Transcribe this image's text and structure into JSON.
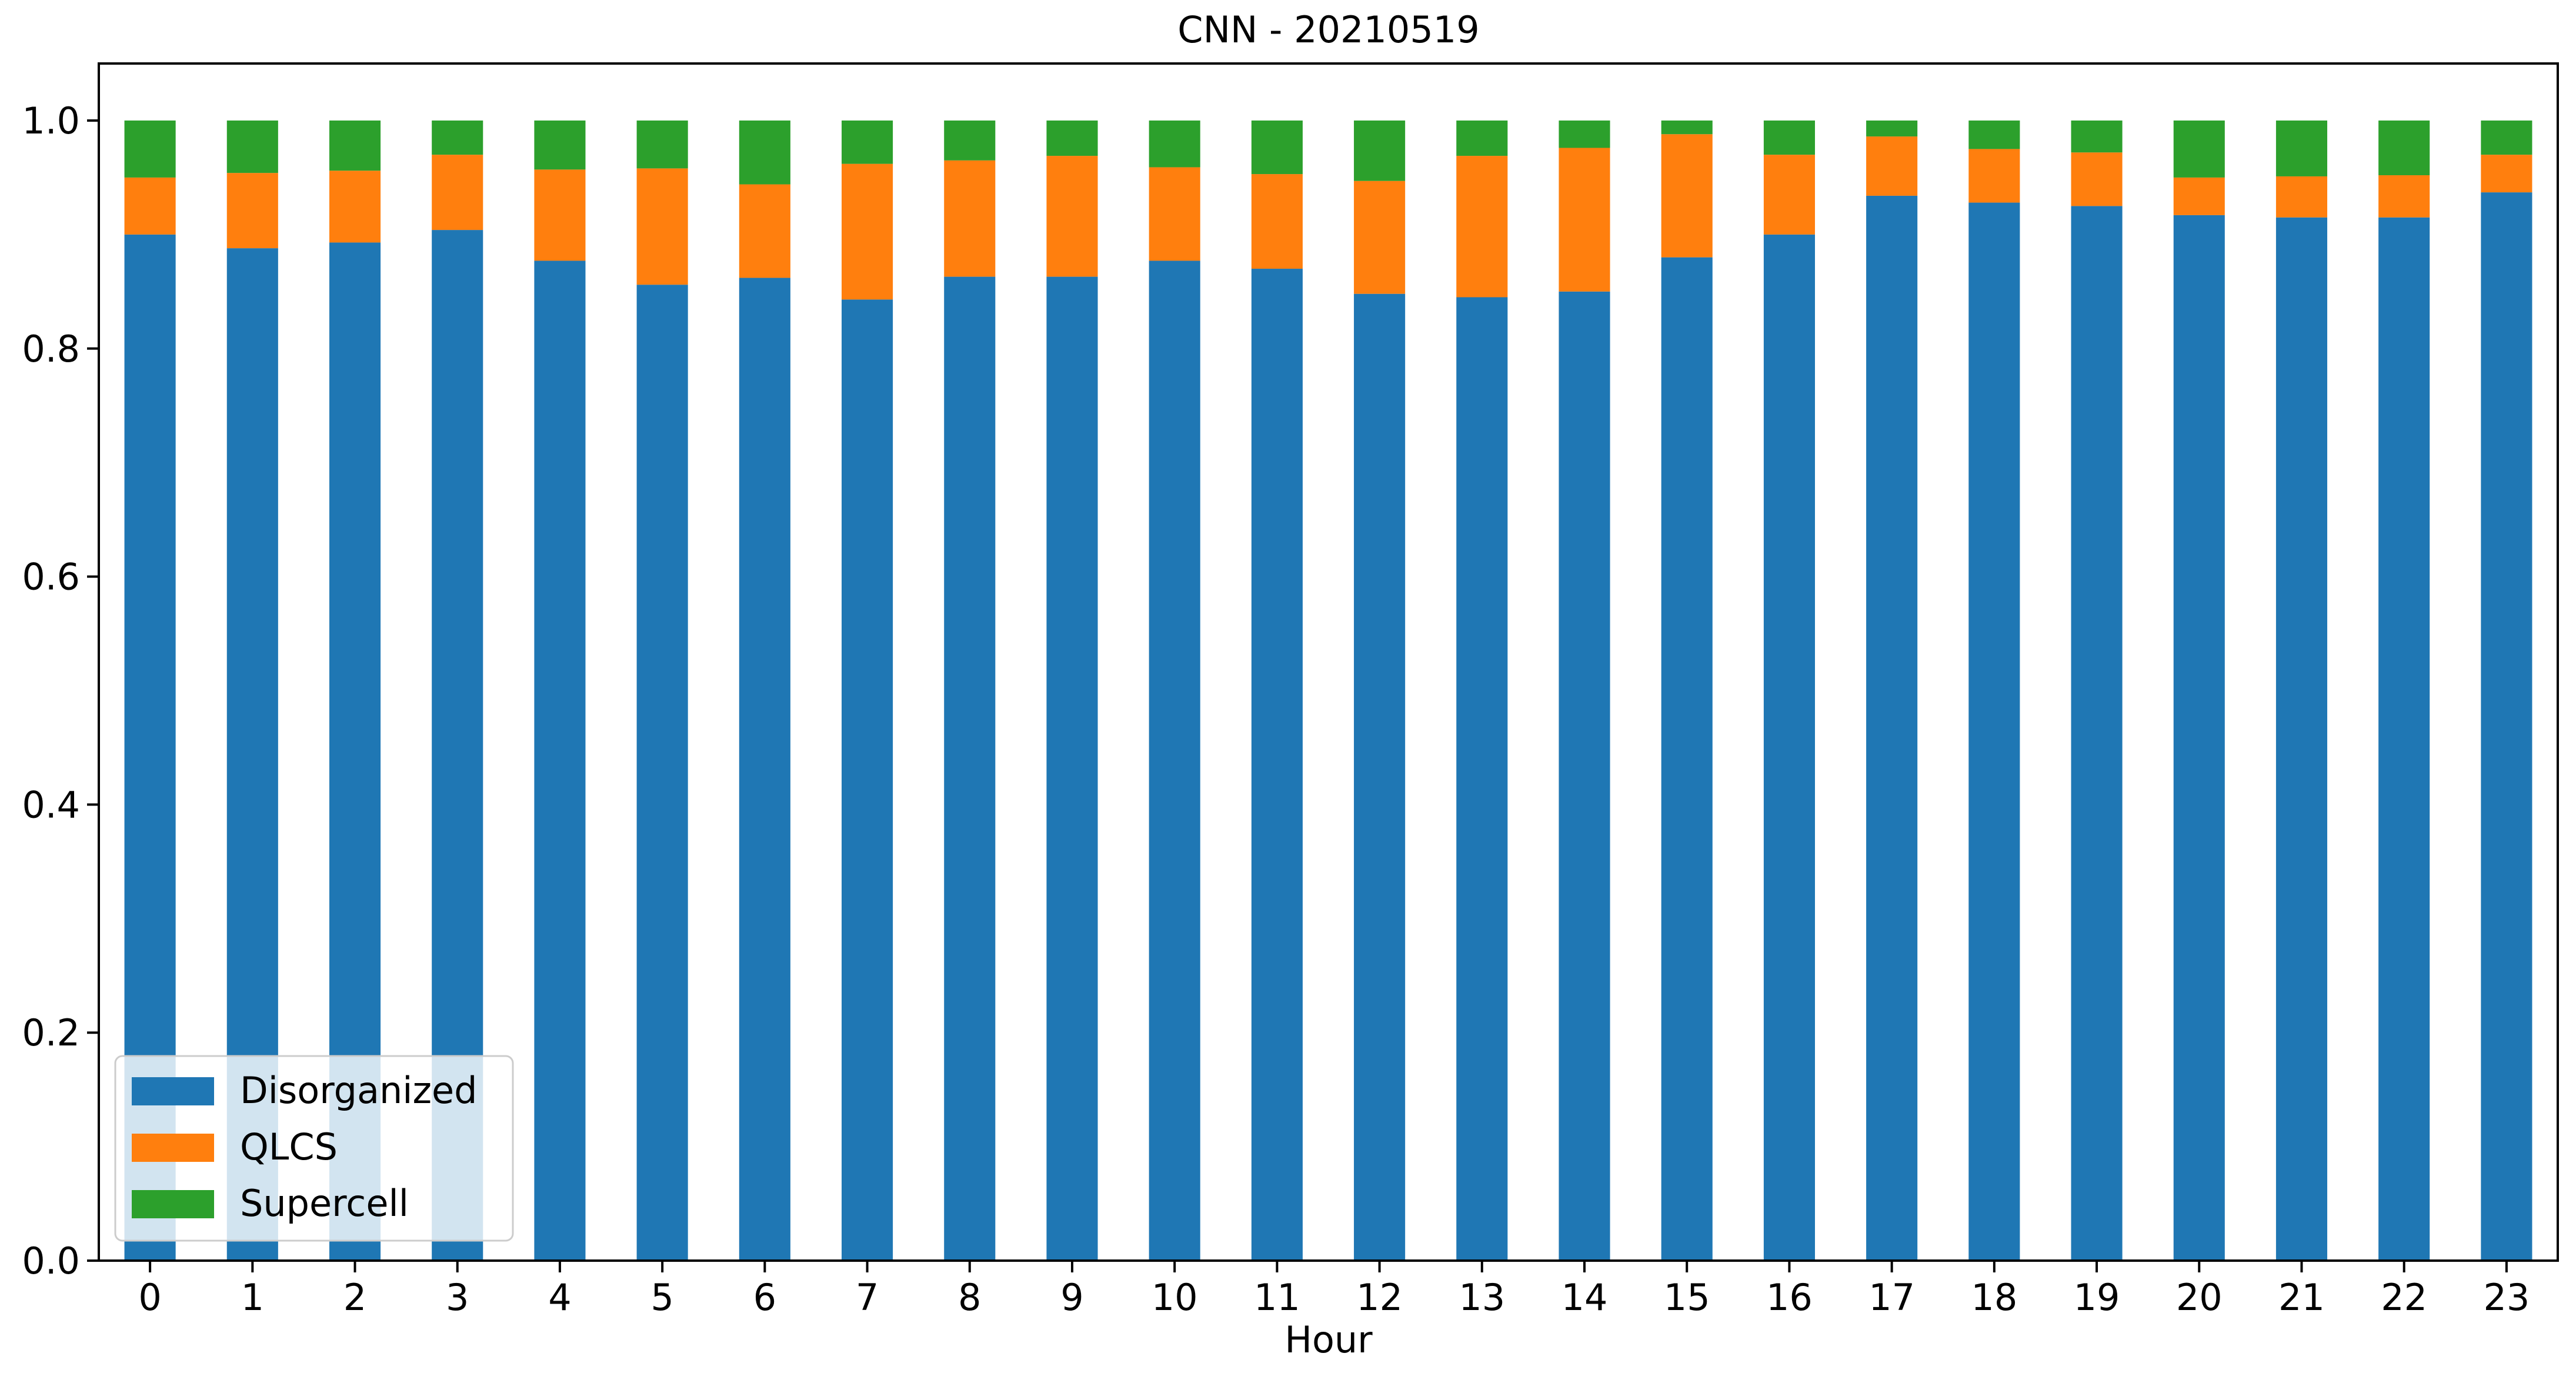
{
  "chart_data": {
    "type": "bar",
    "stacked": true,
    "title": "CNN - 20210519",
    "xlabel": "Hour",
    "ylabel": "",
    "ylim": [
      0,
      1.05
    ],
    "yticks": [
      "0.0",
      "0.2",
      "0.4",
      "0.6",
      "0.8",
      "1.0"
    ],
    "categories": [
      "0",
      "1",
      "2",
      "3",
      "4",
      "5",
      "6",
      "7",
      "8",
      "9",
      "10",
      "11",
      "12",
      "13",
      "14",
      "15",
      "16",
      "17",
      "18",
      "19",
      "20",
      "21",
      "22",
      "23"
    ],
    "series": [
      {
        "name": "Disorganized",
        "color": "#1f77b4",
        "values": [
          0.9,
          0.888,
          0.893,
          0.904,
          0.877,
          0.856,
          0.862,
          0.843,
          0.863,
          0.863,
          0.877,
          0.87,
          0.848,
          0.845,
          0.85,
          0.88,
          0.9,
          0.934,
          0.928,
          0.925,
          0.917,
          0.915,
          0.915,
          0.937
        ]
      },
      {
        "name": "QLCS",
        "color": "#ff7f0e",
        "values": [
          0.05,
          0.066,
          0.063,
          0.066,
          0.08,
          0.102,
          0.082,
          0.119,
          0.102,
          0.106,
          0.082,
          0.083,
          0.099,
          0.124,
          0.126,
          0.108,
          0.07,
          0.052,
          0.047,
          0.047,
          0.033,
          0.036,
          0.037,
          0.033
        ]
      },
      {
        "name": "Supercell",
        "color": "#2ca02c",
        "values": [
          0.05,
          0.046,
          0.044,
          0.03,
          0.043,
          0.042,
          0.056,
          0.038,
          0.035,
          0.031,
          0.041,
          0.047,
          0.053,
          0.031,
          0.024,
          0.012,
          0.03,
          0.014,
          0.025,
          0.028,
          0.05,
          0.049,
          0.048,
          0.03
        ]
      }
    ],
    "legend": {
      "position": "lower-left"
    },
    "grid": false
  }
}
